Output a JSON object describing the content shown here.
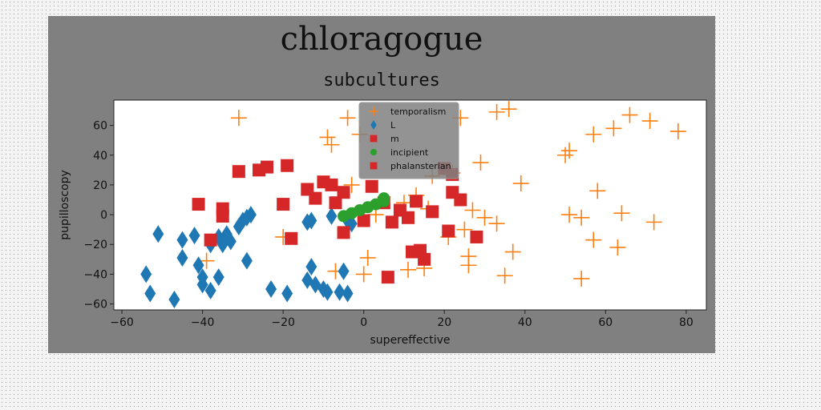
{
  "figure_title": "chloragogue",
  "chart_data": {
    "type": "scatter",
    "title": "subcultures",
    "xlabel": "supereffective",
    "ylabel": "pupilloscopy",
    "xlim": [
      -62,
      85
    ],
    "ylim": [
      -64,
      77
    ],
    "xticks": [
      -60,
      -40,
      -20,
      0,
      20,
      40,
      60,
      80
    ],
    "yticks": [
      -60,
      -40,
      -20,
      0,
      20,
      40,
      60
    ],
    "legend_position": "top-center",
    "grid": false,
    "series": [
      {
        "name": "temporalism",
        "marker": "plus",
        "color": "#ff7f0e",
        "points": [
          [
            -31,
            65
          ],
          [
            -9,
            52
          ],
          [
            -8,
            47
          ],
          [
            -4,
            65
          ],
          [
            -1,
            54
          ],
          [
            24,
            65
          ],
          [
            33,
            69
          ],
          [
            36,
            71
          ],
          [
            29,
            35
          ],
          [
            39,
            21
          ],
          [
            50,
            40
          ],
          [
            51,
            43
          ],
          [
            57,
            54
          ],
          [
            62,
            58
          ],
          [
            66,
            67
          ],
          [
            71,
            63
          ],
          [
            78,
            56
          ],
          [
            58,
            16
          ],
          [
            -3,
            20
          ],
          [
            13,
            13
          ],
          [
            10,
            8
          ],
          [
            16,
            4
          ],
          [
            22,
            28
          ],
          [
            17,
            26
          ],
          [
            27,
            3
          ],
          [
            30,
            -2
          ],
          [
            25,
            -10
          ],
          [
            33,
            -6
          ],
          [
            51,
            0
          ],
          [
            54,
            -2
          ],
          [
            64,
            1
          ],
          [
            72,
            -5
          ],
          [
            57,
            -17
          ],
          [
            63,
            -22
          ],
          [
            37,
            -25
          ],
          [
            26,
            -28
          ],
          [
            26,
            -34
          ],
          [
            35,
            -41
          ],
          [
            54,
            -43
          ],
          [
            21,
            -15
          ],
          [
            -20,
            -15
          ],
          [
            -39,
            -31
          ],
          [
            -7,
            -38
          ],
          [
            1,
            -29
          ],
          [
            0,
            -40
          ],
          [
            11,
            -37
          ],
          [
            15,
            -36
          ],
          [
            3,
            0
          ]
        ]
      },
      {
        "name": "L",
        "marker": "diamond",
        "color": "#1f77b4",
        "points": [
          [
            -51,
            -13
          ],
          [
            -45,
            -17
          ],
          [
            -42,
            -14
          ],
          [
            -54,
            -40
          ],
          [
            -53,
            -53
          ],
          [
            -47,
            -57
          ],
          [
            -45,
            -29
          ],
          [
            -41,
            -34
          ],
          [
            -40,
            -42
          ],
          [
            -40,
            -47
          ],
          [
            -38,
            -51
          ],
          [
            -36,
            -42
          ],
          [
            -38,
            -20
          ],
          [
            -36,
            -15
          ],
          [
            -35,
            -20
          ],
          [
            -34,
            -13
          ],
          [
            -33,
            -18
          ],
          [
            -31,
            -8
          ],
          [
            -30,
            -4
          ],
          [
            -29,
            -2
          ],
          [
            -28,
            0
          ],
          [
            -29,
            -31
          ],
          [
            -23,
            -50
          ],
          [
            -19,
            -53
          ],
          [
            -14,
            -5
          ],
          [
            -13,
            -4
          ],
          [
            -13,
            -35
          ],
          [
            -14,
            -44
          ],
          [
            -12,
            -47
          ],
          [
            -10,
            -50
          ],
          [
            -9,
            -52
          ],
          [
            -6,
            -52
          ],
          [
            -4,
            -53
          ],
          [
            -5,
            -38
          ],
          [
            -8,
            -1
          ],
          [
            -4,
            -4
          ],
          [
            -3,
            -6
          ]
        ]
      },
      {
        "name": "m",
        "marker": "square",
        "color": "#d62728",
        "points": [
          [
            -41,
            7
          ],
          [
            -35,
            4
          ],
          [
            -35,
            -1
          ],
          [
            -38,
            -17
          ],
          [
            -31,
            29
          ],
          [
            -26,
            30
          ],
          [
            -24,
            32
          ],
          [
            -19,
            33
          ],
          [
            -20,
            7
          ],
          [
            -18,
            -16
          ],
          [
            -14,
            17
          ],
          [
            -12,
            11
          ],
          [
            -10,
            22
          ],
          [
            -8,
            20
          ],
          [
            -5,
            15
          ],
          [
            -7,
            8
          ],
          [
            -5,
            -12
          ],
          [
            0,
            -4
          ],
          [
            2,
            19
          ],
          [
            5,
            8
          ],
          [
            7,
            -5
          ],
          [
            9,
            3
          ],
          [
            11,
            -2
          ],
          [
            13,
            9
          ],
          [
            17,
            2
          ],
          [
            20,
            31
          ],
          [
            22,
            27
          ],
          [
            22,
            15
          ],
          [
            24,
            10
          ],
          [
            21,
            -11
          ],
          [
            28,
            -15
          ],
          [
            12,
            -25
          ],
          [
            14,
            -24
          ],
          [
            15,
            -30
          ],
          [
            6,
            -42
          ]
        ]
      },
      {
        "name": "incipient",
        "marker": "circle",
        "color": "#2ca02c",
        "points": [
          [
            -5,
            -1
          ],
          [
            -3,
            1
          ],
          [
            -1,
            3
          ],
          [
            1,
            5
          ],
          [
            3,
            7
          ],
          [
            5,
            9
          ],
          [
            5,
            11
          ]
        ]
      },
      {
        "name": "phalansterian",
        "marker": "square",
        "color": "#d62728",
        "points": []
      }
    ]
  }
}
